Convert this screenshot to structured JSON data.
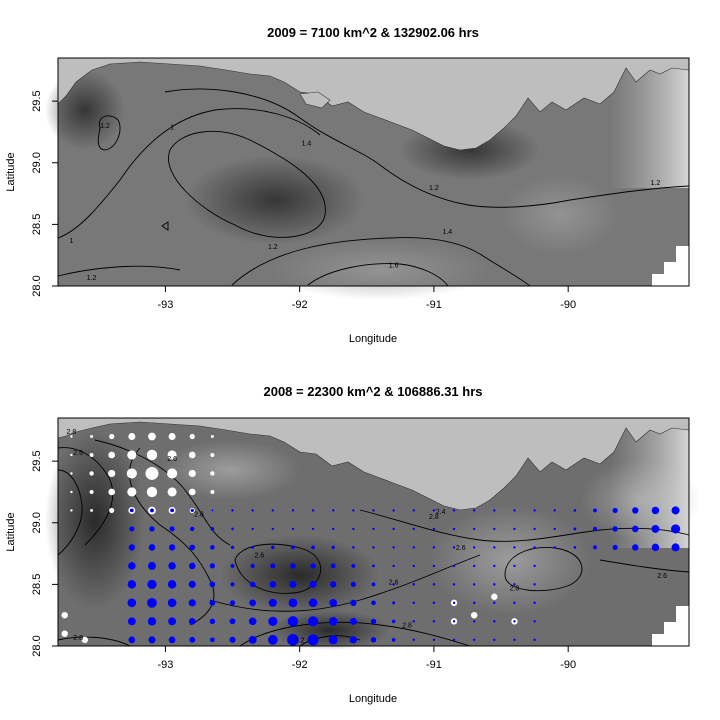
{
  "chart_data": [
    {
      "type": "heatmap",
      "title": "2009 = 7100 km^2 & 132902.06 hrs",
      "xlabel": "Longitude",
      "ylabel": "Latitude",
      "xlim": [
        -93.8,
        -89.1
      ],
      "ylim": [
        28.0,
        29.85
      ],
      "x_ticks": [
        "-93",
        "-92",
        "-91",
        "-90"
      ],
      "x_tick_values": [
        -93,
        -92,
        -91,
        -90
      ],
      "y_ticks": [
        "28.0",
        "28.5",
        "29.0",
        "29.5"
      ],
      "y_tick_values": [
        28.0,
        28.5,
        29.0,
        29.5
      ],
      "contour_labels": [
        {
          "text": "1.2",
          "lon": -93.45,
          "lat": 29.28
        },
        {
          "text": "1",
          "lon": -92.95,
          "lat": 29.27
        },
        {
          "text": "1.4",
          "lon": -91.95,
          "lat": 29.14
        },
        {
          "text": "1.2",
          "lon": -91.0,
          "lat": 28.78
        },
        {
          "text": "1.2",
          "lon": -89.35,
          "lat": 28.82
        },
        {
          "text": "1",
          "lon": -93.7,
          "lat": 28.35
        },
        {
          "text": "1.2",
          "lon": -92.2,
          "lat": 28.3
        },
        {
          "text": "1.4",
          "lon": -90.9,
          "lat": 28.42
        },
        {
          "text": "1.6",
          "lon": -91.3,
          "lat": 28.15
        },
        {
          "text": "1.2",
          "lon": -93.55,
          "lat": 28.05
        }
      ],
      "grid": false,
      "legend": "none"
    },
    {
      "type": "heatmap",
      "title": "2008 = 22300 km^2 & 106886.31 hrs",
      "xlabel": "Longitude",
      "ylabel": "Latitude",
      "xlim": [
        -93.8,
        -89.1
      ],
      "ylim": [
        28.0,
        29.85
      ],
      "x_ticks": [
        "-93",
        "-92",
        "-91",
        "-90"
      ],
      "x_tick_values": [
        -93,
        -92,
        -91,
        -90
      ],
      "y_ticks": [
        "28.0",
        "28.5",
        "29.0",
        "29.5"
      ],
      "y_tick_values": [
        28.0,
        28.5,
        29.0,
        29.5
      ],
      "contour_labels": [
        {
          "text": "2.8",
          "lon": -93.7,
          "lat": 29.72
        },
        {
          "text": "2.6",
          "lon": -93.65,
          "lat": 29.55
        },
        {
          "text": "2.6",
          "lon": -92.95,
          "lat": 29.5
        },
        {
          "text": "2.8",
          "lon": -92.75,
          "lat": 29.05
        },
        {
          "text": "2.8",
          "lon": -91.0,
          "lat": 29.03
        },
        {
          "text": "2.6",
          "lon": -92.3,
          "lat": 28.72
        },
        {
          "text": "2.6",
          "lon": -91.3,
          "lat": 28.5
        },
        {
          "text": "2.8",
          "lon": -91.2,
          "lat": 28.15
        },
        {
          "text": "3.2",
          "lon": -92.0,
          "lat": 28.03
        },
        {
          "text": "2.4",
          "lon": -90.95,
          "lat": 29.07
        },
        {
          "text": "2.6",
          "lon": -90.8,
          "lat": 28.78
        },
        {
          "text": "2.8",
          "lon": -90.4,
          "lat": 28.45
        },
        {
          "text": "2.6",
          "lon": -89.3,
          "lat": 28.55
        },
        {
          "text": "2.8",
          "lon": -93.65,
          "lat": 28.05
        }
      ],
      "bubbles": {
        "white_lon": [
          -93.7,
          -93.55,
          -93.4,
          -93.25,
          -93.1,
          -92.95,
          -92.8,
          -92.65
        ],
        "white_lat": [
          29.7,
          29.55,
          29.4,
          29.25,
          29.1
        ],
        "blue_lon": [
          -93.25,
          -93.1,
          -92.95,
          -92.8,
          -92.65,
          -92.5,
          -92.35,
          -92.2,
          -92.05,
          -91.9,
          -91.75,
          -91.6,
          -91.45,
          -91.3,
          -91.15,
          -91.0,
          -90.85,
          -90.7,
          -90.55,
          -90.4,
          -90.25,
          -90.1,
          -89.95,
          -89.8,
          -89.65,
          -89.5,
          -89.35,
          -89.2
        ],
        "blue_lat": [
          28.05,
          28.2,
          28.35,
          28.5,
          28.65,
          28.8,
          28.95,
          29.1
        ],
        "colors": {
          "positive": "#ffffff",
          "negative": "#0000ff"
        }
      },
      "grid": false,
      "legend": "none"
    }
  ]
}
